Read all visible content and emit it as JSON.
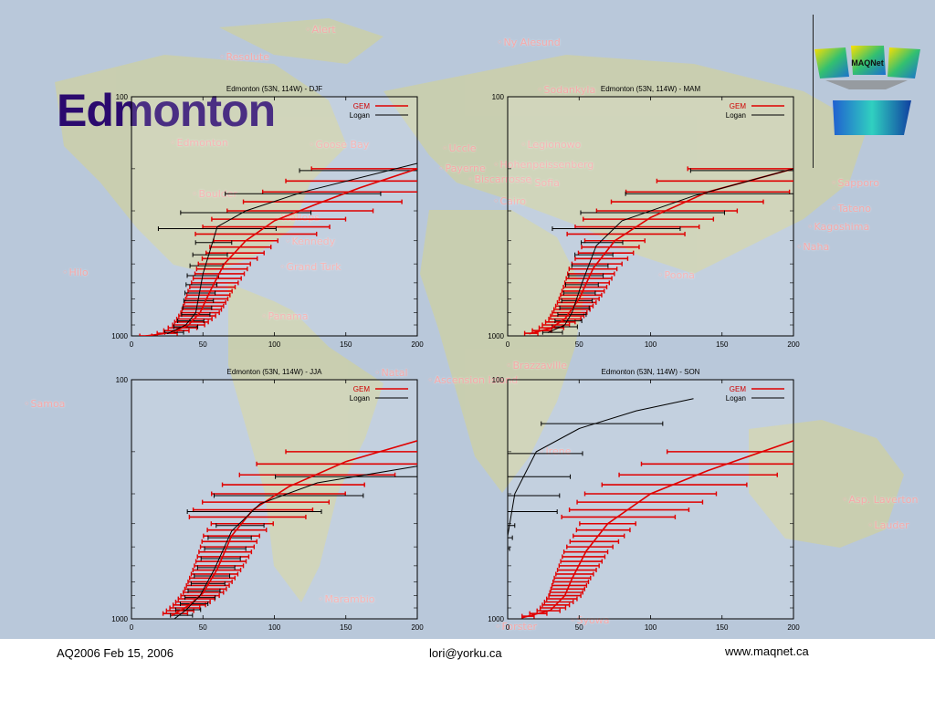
{
  "slide": {
    "title": "Edmonton",
    "footer_left": "AQ2006 Feb 15, 2006",
    "footer_center": "lori@yorku.ca",
    "footer_right": "www.maqnet.ca",
    "logo_text": "MAQNet"
  },
  "map": {
    "stations": [
      "Alert",
      "Ny Alesund",
      "Resolute",
      "Sodankyla",
      "Edmonton",
      "Goose Bay",
      "Hohenpeissenberg",
      "Legionowo",
      "Uccle",
      "Payerne",
      "Sofia",
      "Biscarrosse",
      "Boulder",
      "Sapporo",
      "Tateno",
      "Kagoshima",
      "Naha",
      "Cairo",
      "Hilo",
      "Wallops",
      "Kennedy",
      "Grand Turk",
      "Poona",
      "Panama",
      "Samoa",
      "Natal",
      "Ascension Island",
      "Brazzaville",
      "Irene",
      "Asp. Laverton",
      "Lauder",
      "Marambio",
      "Forster",
      "Syowa"
    ],
    "colors": {
      "ocean": "#b9c8da",
      "land": "#c9cfae",
      "station_label": "#f6a8a8"
    }
  },
  "chart_data": [
    {
      "type": "line",
      "title": "Edmonton (53N, 114W) - DJF",
      "xlim": [
        0,
        200
      ],
      "ylim": [
        1000,
        100
      ],
      "xticks": [
        0,
        50,
        100,
        150,
        200
      ],
      "yticks": [
        "100",
        "1000"
      ],
      "series": [
        {
          "name": "GEM",
          "color": "#e00000",
          "x": [
            10,
            28,
            40,
            48,
            55,
            65,
            80,
            100,
            130,
            160,
            200
          ],
          "y": [
            1000,
            970,
            900,
            800,
            650,
            500,
            400,
            330,
            280,
            240,
            200
          ]
        },
        {
          "name": "Logan",
          "color": "#000000",
          "x": [
            25,
            38,
            45,
            50,
            60,
            80,
            120,
            200
          ],
          "y": [
            980,
            900,
            800,
            550,
            350,
            300,
            250,
            190
          ]
        }
      ]
    },
    {
      "type": "line",
      "title": "Edmonton (53N, 114W) - MAM",
      "xlim": [
        0,
        200
      ],
      "ylim": [
        1000,
        100
      ],
      "xticks": [
        0,
        50,
        100,
        150,
        200
      ],
      "yticks": [
        "100",
        "1000"
      ],
      "series": [
        {
          "name": "GEM",
          "color": "#e00000",
          "x": [
            15,
            30,
            40,
            50,
            60,
            75,
            100,
            140,
            200
          ],
          "y": [
            980,
            930,
            850,
            700,
            520,
            400,
            320,
            250,
            200
          ]
        },
        {
          "name": "Logan",
          "color": "#000000",
          "x": [
            28,
            40,
            45,
            52,
            62,
            80,
            130,
            200
          ],
          "y": [
            970,
            900,
            800,
            600,
            420,
            330,
            260,
            200
          ]
        }
      ]
    },
    {
      "type": "line",
      "title": "Edmonton (53N, 114W) - JJA",
      "xlim": [
        0,
        200
      ],
      "ylim": [
        1000,
        100
      ],
      "xticks": [
        0,
        50,
        100,
        150,
        200
      ],
      "yticks": [
        "100",
        "1000"
      ],
      "series": [
        {
          "name": "GEM",
          "color": "#e00000",
          "x": [
            28,
            40,
            50,
            60,
            70,
            85,
            110,
            150,
            200
          ],
          "y": [
            970,
            880,
            780,
            620,
            450,
            350,
            280,
            220,
            180
          ]
        },
        {
          "name": "Logan",
          "color": "#000000",
          "x": [
            30,
            38,
            48,
            58,
            70,
            90,
            130,
            200
          ],
          "y": [
            1000,
            920,
            800,
            620,
            430,
            330,
            270,
            230
          ]
        }
      ]
    },
    {
      "type": "line",
      "title": "Edmonton (53N, 114W) - SON",
      "xlim": [
        0,
        200
      ],
      "ylim": [
        1000,
        100
      ],
      "xticks": [
        0,
        50,
        100,
        150,
        200
      ],
      "yticks": [
        "100",
        "1000"
      ],
      "series": [
        {
          "name": "GEM",
          "color": "#e00000",
          "x": [
            10,
            30,
            40,
            45,
            55,
            70,
            100,
            140,
            200
          ],
          "y": [
            990,
            920,
            800,
            680,
            520,
            400,
            300,
            240,
            180
          ]
        },
        {
          "name": "Logan",
          "color": "#000000",
          "x": [
            -20,
            -10,
            0,
            5,
            20,
            50,
            90,
            130
          ],
          "y": [
            820,
            700,
            450,
            300,
            200,
            160,
            135,
            120
          ]
        }
      ]
    }
  ]
}
